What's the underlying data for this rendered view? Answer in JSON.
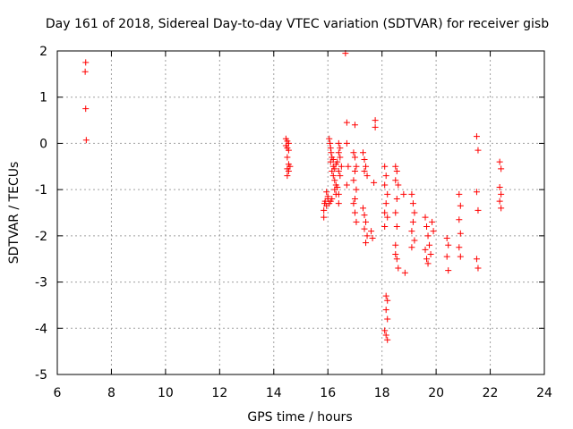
{
  "chart_data": {
    "type": "scatter",
    "title": "Day 161 of 2018, Sidereal Day-to-day VTEC variation (SDTVAR) for receiver gisb",
    "xlabel": "GPS time / hours",
    "ylabel": "SDTVAR / TECUs",
    "xlim": [
      6,
      24
    ],
    "ylim": [
      -5,
      2
    ],
    "xticks": [
      6,
      8,
      10,
      12,
      14,
      16,
      18,
      20,
      22,
      24
    ],
    "yticks": [
      2,
      1,
      0,
      -1,
      -2,
      -3,
      -4,
      -5
    ],
    "xtick_labels": [
      "6",
      "8",
      "10",
      "12",
      "14",
      "16",
      "18",
      "20",
      "22",
      "24"
    ],
    "ytick_labels": [
      "2",
      "1",
      "0",
      "-1",
      "-2",
      "-3",
      "-4",
      "-5"
    ],
    "grid": true,
    "marker": "+",
    "colors": {
      "marker": "#ff0000",
      "grid": "#a0a0a0",
      "axis": "#000000"
    },
    "series": [
      {
        "name": "SDTVAR",
        "points": [
          [
            7.05,
            1.75
          ],
          [
            7.03,
            1.55
          ],
          [
            7.05,
            0.75
          ],
          [
            7.07,
            0.07
          ],
          [
            14.45,
            0.1
          ],
          [
            14.5,
            0.05
          ],
          [
            14.55,
            0.0
          ],
          [
            14.45,
            -0.05
          ],
          [
            14.5,
            -0.1
          ],
          [
            14.55,
            -0.15
          ],
          [
            14.5,
            -0.3
          ],
          [
            14.55,
            -0.45
          ],
          [
            14.6,
            -0.5
          ],
          [
            14.5,
            -0.55
          ],
          [
            14.55,
            -0.6
          ],
          [
            14.5,
            -0.7
          ],
          [
            15.85,
            -1.6
          ],
          [
            15.85,
            -1.45
          ],
          [
            15.88,
            -1.3
          ],
          [
            15.9,
            -1.25
          ],
          [
            15.95,
            -1.35
          ],
          [
            16.0,
            -1.2
          ],
          [
            16.05,
            -1.3
          ],
          [
            16.1,
            -1.25
          ],
          [
            16.15,
            -1.2
          ],
          [
            16.0,
            -1.15
          ],
          [
            15.95,
            -1.05
          ],
          [
            16.05,
            0.1
          ],
          [
            16.08,
            0.0
          ],
          [
            16.1,
            -0.1
          ],
          [
            16.12,
            -0.2
          ],
          [
            16.15,
            -0.3
          ],
          [
            16.1,
            -0.4
          ],
          [
            16.2,
            -0.5
          ],
          [
            16.15,
            -0.6
          ],
          [
            16.2,
            -0.7
          ],
          [
            16.25,
            -0.8
          ],
          [
            16.3,
            -0.9
          ],
          [
            16.25,
            -1.0
          ],
          [
            16.3,
            -1.1
          ],
          [
            16.35,
            -0.95
          ],
          [
            16.4,
            -0.6
          ],
          [
            16.35,
            -0.4
          ],
          [
            16.4,
            -0.2
          ],
          [
            16.45,
            -0.1
          ],
          [
            16.4,
            0.0
          ],
          [
            16.45,
            -0.3
          ],
          [
            16.5,
            -0.5
          ],
          [
            16.45,
            -0.7
          ],
          [
            16.4,
            -1.1
          ],
          [
            16.4,
            -1.3
          ],
          [
            16.3,
            -0.45
          ],
          [
            16.2,
            -0.35
          ],
          [
            16.25,
            -0.55
          ],
          [
            16.65,
            1.95
          ],
          [
            16.7,
            0.45
          ],
          [
            16.7,
            0.0
          ],
          [
            16.75,
            -0.5
          ],
          [
            16.7,
            -0.9
          ],
          [
            16.95,
            -0.2
          ],
          [
            17.0,
            -0.3
          ],
          [
            17.05,
            -0.5
          ],
          [
            17.0,
            -0.6
          ],
          [
            16.95,
            -0.8
          ],
          [
            17.05,
            -1.0
          ],
          [
            17.0,
            -1.2
          ],
          [
            16.95,
            -1.3
          ],
          [
            17.0,
            -1.5
          ],
          [
            17.05,
            -1.7
          ],
          [
            17.0,
            0.4
          ],
          [
            17.3,
            -0.2
          ],
          [
            17.35,
            -0.35
          ],
          [
            17.4,
            -0.5
          ],
          [
            17.35,
            -0.6
          ],
          [
            17.45,
            -0.7
          ],
          [
            17.3,
            -1.4
          ],
          [
            17.35,
            -1.55
          ],
          [
            17.4,
            -1.7
          ],
          [
            17.35,
            -1.85
          ],
          [
            17.45,
            -2.0
          ],
          [
            17.4,
            -2.15
          ],
          [
            17.6,
            -1.9
          ],
          [
            17.65,
            -2.05
          ],
          [
            17.7,
            -0.85
          ],
          [
            17.75,
            0.5
          ],
          [
            17.75,
            0.35
          ],
          [
            18.1,
            -0.5
          ],
          [
            18.15,
            -0.7
          ],
          [
            18.1,
            -0.9
          ],
          [
            18.2,
            -1.1
          ],
          [
            18.15,
            -1.3
          ],
          [
            18.1,
            -1.5
          ],
          [
            18.2,
            -1.6
          ],
          [
            18.1,
            -1.8
          ],
          [
            18.15,
            -3.3
          ],
          [
            18.2,
            -3.4
          ],
          [
            18.15,
            -3.6
          ],
          [
            18.2,
            -3.8
          ],
          [
            18.1,
            -4.05
          ],
          [
            18.15,
            -4.15
          ],
          [
            18.2,
            -4.25
          ],
          [
            18.5,
            -0.5
          ],
          [
            18.55,
            -0.6
          ],
          [
            18.5,
            -0.8
          ],
          [
            18.6,
            -0.9
          ],
          [
            18.55,
            -1.2
          ],
          [
            18.5,
            -1.5
          ],
          [
            18.55,
            -1.8
          ],
          [
            18.5,
            -2.2
          ],
          [
            18.55,
            -2.5
          ],
          [
            18.6,
            -2.7
          ],
          [
            18.5,
            -2.4
          ],
          [
            18.8,
            -1.1
          ],
          [
            18.85,
            -2.8
          ],
          [
            19.1,
            -1.1
          ],
          [
            19.15,
            -1.3
          ],
          [
            19.2,
            -1.5
          ],
          [
            19.15,
            -1.7
          ],
          [
            19.1,
            -1.9
          ],
          [
            19.2,
            -2.1
          ],
          [
            19.1,
            -2.25
          ],
          [
            19.6,
            -1.6
          ],
          [
            19.65,
            -1.8
          ],
          [
            19.7,
            -2.0
          ],
          [
            19.75,
            -2.2
          ],
          [
            19.8,
            -2.4
          ],
          [
            19.7,
            -2.6
          ],
          [
            19.85,
            -1.7
          ],
          [
            19.9,
            -1.9
          ],
          [
            19.6,
            -2.3
          ],
          [
            19.65,
            -2.5
          ],
          [
            20.4,
            -2.05
          ],
          [
            20.45,
            -2.2
          ],
          [
            20.4,
            -2.45
          ],
          [
            20.45,
            -2.75
          ],
          [
            20.85,
            -1.1
          ],
          [
            20.9,
            -1.35
          ],
          [
            20.85,
            -1.65
          ],
          [
            20.9,
            -1.95
          ],
          [
            20.85,
            -2.25
          ],
          [
            20.9,
            -2.45
          ],
          [
            21.5,
            0.15
          ],
          [
            21.55,
            -0.15
          ],
          [
            21.5,
            -1.05
          ],
          [
            21.55,
            -1.45
          ],
          [
            21.5,
            -2.5
          ],
          [
            21.55,
            -2.7
          ],
          [
            22.35,
            -0.4
          ],
          [
            22.4,
            -0.55
          ],
          [
            22.35,
            -0.95
          ],
          [
            22.4,
            -1.1
          ],
          [
            22.35,
            -1.25
          ],
          [
            22.4,
            -1.4
          ]
        ]
      }
    ]
  }
}
